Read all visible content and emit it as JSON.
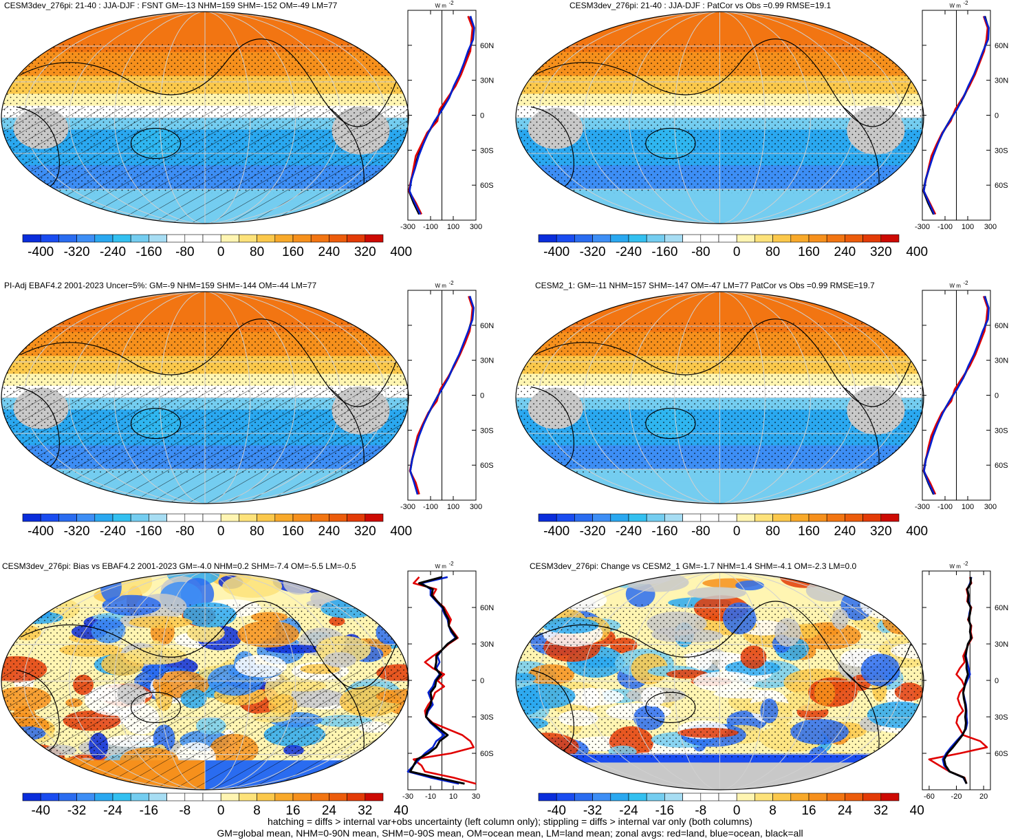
{
  "chart_data": [
    {
      "type": "heatmap",
      "title": "CESM3dev_276pi: 21-40 : JJA-DJF : FSNT GM=-13 NHM=159 SHM=-152 OM=-49 LM=77",
      "colorbar_labels": [
        "-400",
        "-320",
        "-240",
        "-160",
        "-80",
        "0",
        "80",
        "160",
        "240",
        "320",
        "400"
      ],
      "zonal": {
        "unit": "W m",
        "xticks": [
          "-300",
          "-100",
          "100",
          "300"
        ],
        "xlim": [
          -300,
          300
        ],
        "yticks": [
          "60N",
          "30N",
          "0",
          "30S",
          "60S"
        ],
        "lat": [
          85,
          75,
          65,
          55,
          45,
          35,
          25,
          15,
          5,
          -5,
          -15,
          -25,
          -35,
          -45,
          -55,
          -65,
          -75,
          -85
        ],
        "series": [
          {
            "color": "#000000",
            "values": [
              250,
              280,
              270,
              240,
              200,
              160,
              110,
              60,
              0,
              -60,
              -120,
              -170,
              -210,
              -240,
              -270,
              -290,
              -250,
              -200
            ]
          },
          {
            "color": "#e00000",
            "values": [
              230,
              270,
              260,
              250,
              210,
              170,
              120,
              50,
              -20,
              -40,
              -130,
              -180,
              -230,
              -250,
              -270,
              -290,
              -230,
              -180
            ]
          },
          {
            "color": "#0020d0",
            "values": [
              250,
              285,
              275,
              230,
              195,
              155,
              105,
              65,
              5,
              -65,
              -120,
              -165,
              -205,
              -235,
              -268,
              -285,
              -240,
              -190
            ]
          }
        ]
      },
      "fill": "positive-north",
      "hatching": true
    },
    {
      "type": "heatmap",
      "title": "CESM3dev_276pi: 21-40 : JJA-DJF : PatCor vs Obs =0.99 RMSE=19.1",
      "colorbar_labels": [
        "-400",
        "-320",
        "-240",
        "-160",
        "-80",
        "0",
        "80",
        "160",
        "240",
        "320",
        "400"
      ],
      "zonal": {
        "unit": "W m",
        "xticks": [
          "-300",
          "-100",
          "100",
          "300"
        ],
        "xlim": [
          -300,
          300
        ],
        "yticks": [
          "60N",
          "30N",
          "0",
          "30S",
          "60S"
        ],
        "lat": [
          85,
          75,
          65,
          55,
          45,
          35,
          25,
          15,
          5,
          -5,
          -15,
          -25,
          -35,
          -45,
          -55,
          -65,
          -75,
          -85
        ],
        "series": [
          {
            "color": "#000000",
            "values": [
              250,
              280,
              270,
              240,
              200,
              160,
              110,
              60,
              0,
              -60,
              -120,
              -170,
              -210,
              -240,
              -270,
              -290,
              -250,
              -200
            ]
          },
          {
            "color": "#e00000",
            "values": [
              240,
              275,
              265,
              245,
              205,
              165,
              115,
              55,
              -10,
              -50,
              -125,
              -175,
              -220,
              -245,
              -268,
              -288,
              -235,
              -185
            ]
          },
          {
            "color": "#0020d0",
            "values": [
              245,
              285,
              280,
              235,
              195,
              155,
              105,
              60,
              5,
              -60,
              -120,
              -165,
              -205,
              -238,
              -270,
              -286,
              -242,
              -195
            ]
          }
        ]
      },
      "fill": "positive-north",
      "hatching": false
    },
    {
      "type": "heatmap",
      "title": "PI-Adj EBAF4.2 2001-2023 Uncer=5%: GM=-9 NHM=159 SHM=-144 OM=-44 LM=77",
      "colorbar_labels": [
        "-400",
        "-320",
        "-240",
        "-160",
        "-80",
        "0",
        "80",
        "160",
        "240",
        "320",
        "400"
      ],
      "zonal": {
        "unit": "W m",
        "xticks": [
          "-300",
          "-100",
          "100",
          "300"
        ],
        "xlim": [
          -300,
          300
        ],
        "yticks": [
          "60N",
          "30N",
          "0",
          "30S",
          "60S"
        ],
        "lat": [
          85,
          75,
          65,
          55,
          45,
          35,
          25,
          15,
          5,
          -5,
          -15,
          -25,
          -35,
          -45,
          -55,
          -65,
          -75,
          -85
        ],
        "series": [
          {
            "color": "#000000",
            "values": [
              245,
              275,
              265,
              235,
              195,
              155,
              105,
              55,
              -5,
              -60,
              -115,
              -165,
              -205,
              -235,
              -262,
              -280,
              -240,
              -210
            ]
          },
          {
            "color": "#e00000",
            "values": [
              235,
              270,
              260,
              245,
              205,
              160,
              110,
              50,
              -15,
              -45,
              -120,
              -170,
              -215,
              -240,
              -262,
              -282,
              -230,
              -200
            ]
          },
          {
            "color": "#0020d0",
            "values": [
              245,
              280,
              270,
              232,
              192,
              152,
              102,
              58,
              0,
              -62,
              -115,
              -162,
              -202,
              -232,
              -262,
              -278,
              -245,
              -215
            ]
          }
        ]
      },
      "fill": "positive-north",
      "hatching": true
    },
    {
      "type": "heatmap",
      "title": "CESM2_1: GM=-11 NHM=157 SHM=-147 OM=-47 LM=77 PatCor vs Obs =0.99 RMSE=19.7",
      "colorbar_labels": [
        "-400",
        "-320",
        "-240",
        "-160",
        "-80",
        "0",
        "80",
        "160",
        "240",
        "320",
        "400"
      ],
      "zonal": {
        "unit": "W m",
        "xticks": [
          "-300",
          "-100",
          "100",
          "300"
        ],
        "xlim": [
          -300,
          300
        ],
        "yticks": [
          "60N",
          "30N",
          "0",
          "30S",
          "60S"
        ],
        "lat": [
          85,
          75,
          65,
          55,
          45,
          35,
          25,
          15,
          5,
          -5,
          -15,
          -25,
          -35,
          -45,
          -55,
          -65,
          -75,
          -85
        ],
        "series": [
          {
            "color": "#000000",
            "values": [
              250,
              280,
              270,
              240,
              200,
              160,
              110,
              60,
              0,
              -60,
              -120,
              -170,
              -210,
              -240,
              -270,
              -288,
              -248,
              -200
            ]
          },
          {
            "color": "#e00000",
            "values": [
              240,
              275,
              265,
              248,
              208,
              168,
              118,
              52,
              -15,
              -45,
              -128,
              -178,
              -222,
              -248,
              -268,
              -288,
              -232,
              -185
            ]
          },
          {
            "color": "#0020d0",
            "values": [
              248,
              285,
              278,
              232,
              195,
              155,
              105,
              62,
              5,
              -62,
              -118,
              -165,
              -205,
              -236,
              -268,
              -285,
              -245,
              -195
            ]
          }
        ]
      },
      "fill": "positive-north",
      "hatching": false
    },
    {
      "type": "heatmap",
      "title": "CESM3dev_276pi: Bias vs EBAF4.2 2001-2023 GM=-4.0 NHM=0.2 SHM=-7.4 OM=-5.5 LM=-0.5",
      "colorbar_labels": [
        "-40",
        "-32",
        "-24",
        "-16",
        "-8",
        "0",
        "8",
        "16",
        "24",
        "32",
        "40"
      ],
      "zonal": {
        "unit": "W m",
        "xticks": [
          "-30",
          "-10",
          "10",
          "30"
        ],
        "xlim": [
          -30,
          30
        ],
        "yticks": [
          "60N",
          "30N",
          "0",
          "30S",
          "60S"
        ],
        "lat": [
          85,
          80,
          75,
          70,
          65,
          60,
          55,
          50,
          45,
          40,
          35,
          30,
          25,
          20,
          15,
          10,
          5,
          0,
          -5,
          -10,
          -15,
          -20,
          -25,
          -30,
          -35,
          -40,
          -45,
          -50,
          -55,
          -60,
          -65,
          -70,
          -75,
          -80,
          -85
        ],
        "series": [
          {
            "color": "#e00000",
            "values": [
              -20,
              -25,
              -5,
              -8,
              -4,
              2,
              5,
              8,
              6,
              10,
              14,
              6,
              0,
              -8,
              -15,
              -8,
              2,
              -4,
              2,
              -6,
              -8,
              -12,
              -15,
              -14,
              -8,
              5,
              18,
              25,
              28,
              8,
              -25,
              -18,
              -15,
              10,
              30
            ]
          },
          {
            "color": "#0020d0",
            "values": [
              5,
              -18,
              -10,
              -10,
              -5,
              0,
              2,
              5,
              6,
              8,
              12,
              5,
              0,
              -4,
              -2,
              -5,
              -2,
              -6,
              -8,
              -12,
              -10,
              -8,
              -12,
              -14,
              -10,
              -4,
              2,
              -5,
              -8,
              -15,
              -20,
              -25,
              -30,
              -10,
              15
            ]
          },
          {
            "color": "#000000",
            "values": [
              0,
              -20,
              -8,
              -9,
              -4,
              1,
              3,
              6,
              6,
              9,
              13,
              5,
              0,
              -5,
              -5,
              -6,
              -1,
              -5,
              -6,
              -10,
              -9,
              -10,
              -13,
              -14,
              -9,
              -2,
              5,
              -2,
              -5,
              -12,
              -22,
              -25,
              -28,
              -5,
              20
            ]
          }
        ]
      },
      "fill": "bias",
      "hatching": true
    },
    {
      "type": "heatmap",
      "title": "CESM3dev_276pi: Change vs CESM2_1 GM=-1.7 NHM=1.4 SHM=-4.1 OM=-2.3 LM=0.0",
      "colorbar_labels": [
        "-40",
        "-32",
        "-24",
        "-16",
        "-8",
        "0",
        "8",
        "16",
        "24",
        "32",
        "40"
      ],
      "zonal": {
        "unit": "W m",
        "xticks": [
          "-60",
          "-20",
          "20"
        ],
        "xlim": [
          -70,
          30
        ],
        "yticks": [
          "60N",
          "30N",
          "0",
          "30S",
          "60S"
        ],
        "lat": [
          85,
          80,
          75,
          70,
          65,
          60,
          55,
          50,
          45,
          40,
          35,
          30,
          25,
          20,
          15,
          10,
          5,
          0,
          -5,
          -10,
          -15,
          -20,
          -25,
          -30,
          -35,
          -40,
          -45,
          -50,
          -55,
          -60,
          -65,
          -70,
          -75,
          -80,
          -85
        ],
        "series": [
          {
            "color": "#e00000",
            "values": [
              0,
              2,
              -5,
              -3,
              -4,
              2,
              0,
              -3,
              2,
              1,
              3,
              -2,
              -6,
              -10,
              -8,
              -15,
              -20,
              -12,
              -8,
              -15,
              -18,
              -15,
              -10,
              -18,
              -20,
              -15,
              -10,
              15,
              25,
              -15,
              -60,
              -45,
              -30,
              -8,
              -5
            ]
          },
          {
            "color": "#0020d0",
            "values": [
              2,
              0,
              -4,
              -2,
              -2,
              1,
              -1,
              -2,
              1,
              0,
              2,
              -3,
              -5,
              -6,
              -4,
              -2,
              0,
              -4,
              -8,
              -10,
              -8,
              -6,
              -5,
              -5,
              -4,
              -6,
              -12,
              -20,
              -28,
              -35,
              -40,
              -38,
              -30,
              -10,
              -5
            ]
          },
          {
            "color": "#000000",
            "values": [
              1,
              1,
              -4,
              -2,
              -3,
              1,
              0,
              -2,
              1,
              0,
              2,
              -3,
              -5,
              -7,
              -5,
              -5,
              -3,
              -6,
              -8,
              -10,
              -9,
              -7,
              -6,
              -7,
              -6,
              -7,
              -11,
              -18,
              -25,
              -33,
              -38,
              -36,
              -30,
              -9,
              -5
            ]
          }
        ]
      },
      "fill": "change",
      "hatching": false
    }
  ],
  "palette_full": [
    "#0a2ddb",
    "#1a4cf0",
    "#2a6cf0",
    "#3d8ef5",
    "#2aa8f0",
    "#33c0f0",
    "#74cdf0",
    "#a7ddf3",
    "#ffffff",
    "#ffffff",
    "#ffffff",
    "#fff5b2",
    "#fde27a",
    "#fbc84b",
    "#f8a92a",
    "#f6901c",
    "#f27512",
    "#ec5c0b",
    "#e33b07",
    "#cd0a03"
  ],
  "footer": [
    "hatching = diffs > internal var+obs uncertainty (left column only); stippling = diffs > internal var only (both columns)",
    "GM=global mean, NHM=0-90N mean, SHM=0-90S mean, OM=ocean mean, LM=land mean; zonal avgs: red=land, blue=ocean, black=all"
  ]
}
